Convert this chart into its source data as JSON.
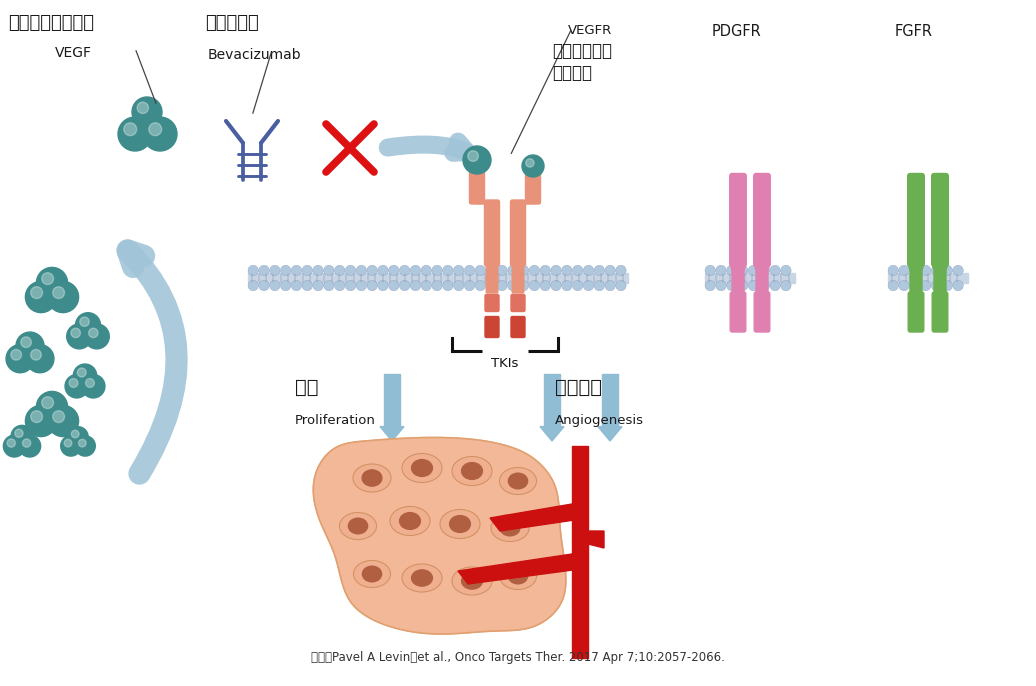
{
  "background_color": "#ffffff",
  "citation": "来源：Pavel A Levin，et al., Onco Targets Ther. 2017 Apr 7;10:2057-2066.",
  "labels": {
    "vegf_cn": "血管内皮生长因子",
    "vegf_en": "VEGF",
    "bev_cn": "贝伐珠单抗",
    "bev_en": "Bevacizumab",
    "vegfr_label": "VEGFR",
    "vegfr_cn": "血管内皮生长\n因子受体",
    "pdgfr": "PDGFR",
    "fgfr": "FGFR",
    "tkis": "TKIs",
    "prolif_cn": "增殖",
    "prolif_en": "Proliferation",
    "angio_cn": "血管生成",
    "angio_en": "Angiogenesis"
  },
  "colors": {
    "teal": "#3d8b8b",
    "blue_antibody": "#4a5fa0",
    "salmon": "#e8927a",
    "red_receptor": "#cc3333",
    "pink": "#e080b0",
    "green_receptor": "#6ab050",
    "membrane_blue": "#b0c8de",
    "arrow_blue": "#90bcd4",
    "red_x": "#dd1111",
    "cell_fill": "#f0b090",
    "cell_nucleus": "#b06040",
    "blood_red": "#cc1010",
    "text_dark": "#1a1a1a",
    "tki_line": "#111111"
  },
  "figure_size": [
    10.36,
    6.86
  ],
  "dpi": 100
}
